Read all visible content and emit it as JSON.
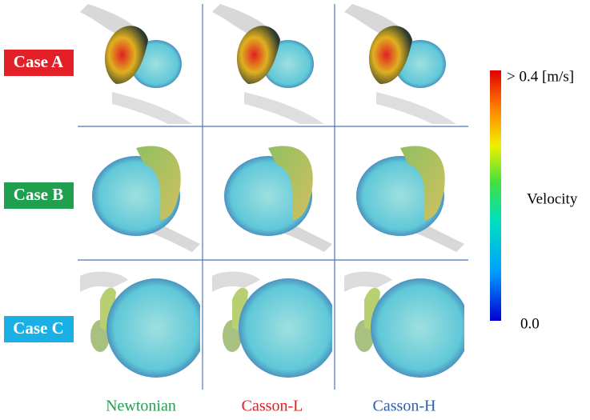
{
  "figure": {
    "row_labels": [
      "Case A",
      "Case B",
      "Case C"
    ],
    "column_labels": [
      "Newtonian",
      "Casson-L",
      "Casson-H"
    ],
    "colorbar": {
      "max_label": "> 0.4 [m/s]",
      "title": "Velocity",
      "min_label": "0.0"
    }
  }
}
